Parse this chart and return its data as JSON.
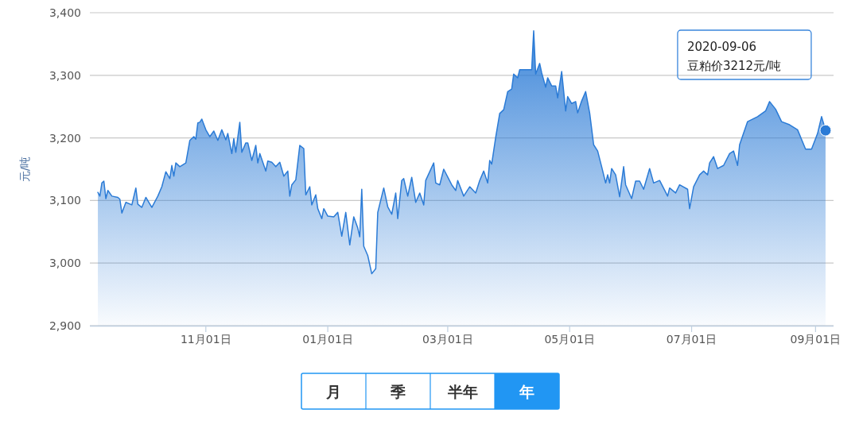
{
  "chart_data": {
    "type": "area",
    "ylabel": "元/吨",
    "xlim": [
      "2019-09-04",
      "2020-09-10"
    ],
    "ylim": [
      2900,
      3400
    ],
    "yticks": [
      {
        "value": 2900,
        "label": "2,900"
      },
      {
        "value": 3000,
        "label": "3,000"
      },
      {
        "value": 3100,
        "label": "3,100"
      },
      {
        "value": 3200,
        "label": "3,200"
      },
      {
        "value": 3300,
        "label": "3,300"
      },
      {
        "value": 3400,
        "label": "3,400"
      }
    ],
    "xticks": [
      {
        "value": "2019-11-01",
        "label": "11月01日"
      },
      {
        "value": "2020-01-01",
        "label": "01月01日"
      },
      {
        "value": "2020-03-01",
        "label": "03月01日"
      },
      {
        "value": "2020-05-01",
        "label": "05月01日"
      },
      {
        "value": "2020-07-01",
        "label": "07月01日"
      },
      {
        "value": "2020-09-01",
        "label": "09月01日"
      }
    ],
    "grid": "y",
    "x": [
      "2019-09-08",
      "2019-09-09",
      "2019-09-10",
      "2019-09-11",
      "2019-09-12",
      "2019-09-13",
      "2019-09-15",
      "2019-09-18",
      "2019-09-19",
      "2019-09-20",
      "2019-09-22",
      "2019-09-25",
      "2019-09-27",
      "2019-09-28",
      "2019-09-30",
      "2019-10-02",
      "2019-10-05",
      "2019-10-08",
      "2019-10-10",
      "2019-10-12",
      "2019-10-14",
      "2019-10-15",
      "2019-10-16",
      "2019-10-17",
      "2019-10-19",
      "2019-10-22",
      "2019-10-24",
      "2019-10-26",
      "2019-10-27",
      "2019-10-28",
      "2019-10-29",
      "2019-10-30",
      "2019-11-01",
      "2019-11-03",
      "2019-11-05",
      "2019-11-07",
      "2019-11-09",
      "2019-11-11",
      "2019-11-12",
      "2019-11-14",
      "2019-11-15",
      "2019-11-16",
      "2019-11-18",
      "2019-11-19",
      "2019-11-21",
      "2019-11-22",
      "2019-11-24",
      "2019-11-26",
      "2019-11-27",
      "2019-11-28",
      "2019-12-01",
      "2019-12-02",
      "2019-12-04",
      "2019-12-06",
      "2019-12-08",
      "2019-12-10",
      "2019-12-12",
      "2019-12-13",
      "2019-12-14",
      "2019-12-16",
      "2019-12-18",
      "2019-12-20",
      "2019-12-21",
      "2019-12-23",
      "2019-12-24",
      "2019-12-26",
      "2019-12-27",
      "2019-12-29",
      "2019-12-30",
      "2020-01-01",
      "2020-01-04",
      "2020-01-06",
      "2020-01-08",
      "2020-01-10",
      "2020-01-12",
      "2020-01-14",
      "2020-01-16",
      "2020-01-17",
      "2020-01-18",
      "2020-01-19",
      "2020-01-21",
      "2020-01-23",
      "2020-01-25",
      "2020-01-26",
      "2020-01-29",
      "2020-01-31",
      "2020-02-02",
      "2020-02-04",
      "2020-02-05",
      "2020-02-07",
      "2020-02-08",
      "2020-02-10",
      "2020-02-12",
      "2020-02-14",
      "2020-02-16",
      "2020-02-18",
      "2020-02-19",
      "2020-02-23",
      "2020-02-24",
      "2020-02-26",
      "2020-02-28",
      "2020-03-03",
      "2020-03-05",
      "2020-03-06",
      "2020-03-09",
      "2020-03-12",
      "2020-03-15",
      "2020-03-17",
      "2020-03-19",
      "2020-03-21",
      "2020-03-22",
      "2020-03-23",
      "2020-03-25",
      "2020-03-27",
      "2020-03-29",
      "2020-03-31",
      "2020-04-02",
      "2020-04-03",
      "2020-04-05",
      "2020-04-06",
      "2020-04-09",
      "2020-04-12",
      "2020-04-13",
      "2020-04-14",
      "2020-04-16",
      "2020-04-17",
      "2020-04-19",
      "2020-04-20",
      "2020-04-22",
      "2020-04-24",
      "2020-04-25",
      "2020-04-27",
      "2020-04-29",
      "2020-04-30",
      "2020-05-02",
      "2020-05-04",
      "2020-05-05",
      "2020-05-07",
      "2020-05-09",
      "2020-05-11",
      "2020-05-13",
      "2020-05-15",
      "2020-05-17",
      "2020-05-19",
      "2020-05-20",
      "2020-05-21",
      "2020-05-22",
      "2020-05-24",
      "2020-05-26",
      "2020-05-28",
      "2020-05-29",
      "2020-06-01",
      "2020-06-03",
      "2020-06-05",
      "2020-06-07",
      "2020-06-10",
      "2020-06-12",
      "2020-06-15",
      "2020-06-19",
      "2020-06-20",
      "2020-06-23",
      "2020-06-25",
      "2020-06-29",
      "2020-06-30",
      "2020-07-02",
      "2020-07-05",
      "2020-07-07",
      "2020-07-09",
      "2020-07-10",
      "2020-07-12",
      "2020-07-14",
      "2020-07-17",
      "2020-07-20",
      "2020-07-22",
      "2020-07-24",
      "2020-07-25",
      "2020-07-29",
      "2020-08-03",
      "2020-08-07",
      "2020-08-09",
      "2020-08-12",
      "2020-08-15",
      "2020-08-19",
      "2020-08-23",
      "2020-08-27",
      "2020-08-30",
      "2020-09-02",
      "2020-09-04",
      "2020-09-06"
    ],
    "series": [
      {
        "color": "#2b7bd6",
        "values": [
          3113,
          3107,
          3128,
          3131,
          3103,
          3116,
          3107,
          3105,
          3102,
          3080,
          3097,
          3093,
          3120,
          3094,
          3089,
          3105,
          3089,
          3107,
          3122,
          3146,
          3135,
          3156,
          3139,
          3160,
          3154,
          3160,
          3196,
          3202,
          3198,
          3224,
          3225,
          3230,
          3213,
          3202,
          3211,
          3196,
          3213,
          3197,
          3207,
          3175,
          3199,
          3177,
          3225,
          3177,
          3192,
          3192,
          3164,
          3188,
          3160,
          3175,
          3147,
          3163,
          3161,
          3154,
          3161,
          3139,
          3147,
          3107,
          3125,
          3133,
          3188,
          3183,
          3109,
          3122,
          3093,
          3109,
          3087,
          3071,
          3087,
          3075,
          3074,
          3081,
          3043,
          3081,
          3029,
          3074,
          3056,
          3042,
          3118,
          3027,
          3012,
          2983,
          2991,
          3081,
          3120,
          3090,
          3078,
          3112,
          3071,
          3132,
          3135,
          3107,
          3137,
          3097,
          3112,
          3093,
          3132,
          3160,
          3128,
          3125,
          3150,
          3125,
          3116,
          3132,
          3107,
          3122,
          3112,
          3132,
          3147,
          3128,
          3164,
          3158,
          3201,
          3239,
          3245,
          3274,
          3278,
          3302,
          3296,
          3309,
          3309,
          3309,
          3371,
          3302,
          3319,
          3304,
          3281,
          3296,
          3283,
          3283,
          3264,
          3306,
          3243,
          3266,
          3255,
          3258,
          3240,
          3259,
          3274,
          3240,
          3189,
          3179,
          3154,
          3128,
          3141,
          3128,
          3151,
          3141,
          3106,
          3154,
          3125,
          3103,
          3131,
          3131,
          3118,
          3151,
          3128,
          3132,
          3107,
          3120,
          3112,
          3125,
          3118,
          3087,
          3122,
          3141,
          3147,
          3141,
          3160,
          3170,
          3151,
          3156,
          3175,
          3179,
          3156,
          3189,
          3226,
          3234,
          3243,
          3258,
          3246,
          3226,
          3221,
          3213,
          3182,
          3182,
          3207,
          3234,
          3212
        ]
      }
    ],
    "annotations": [
      "2020-09-06\n豆粕价3212元/吨",
      "月",
      "季",
      "半年",
      "年"
    ]
  }
}
